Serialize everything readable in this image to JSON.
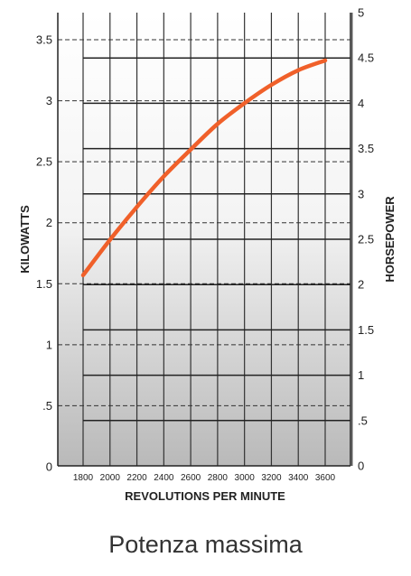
{
  "caption": "Potenza massima",
  "chart_data": {
    "type": "line",
    "title": "",
    "xlabel": "REVOLUTIONS PER MINUTE",
    "ylabel_left": "KILOWATTS",
    "ylabel_right": "HORSEPOWER",
    "x_ticks": [
      "1800",
      "2000",
      "2200",
      "2400",
      "2600",
      "2800",
      "3000",
      "3200",
      "3400",
      "3600"
    ],
    "x_range": [
      1800,
      3600
    ],
    "ylim_left": [
      0,
      3.7
    ],
    "ylim_right": [
      0,
      5
    ],
    "y_ticks_left": [
      {
        "value": 0,
        "label": "0"
      },
      {
        "value": 0.5,
        "label": ".5"
      },
      {
        "value": 1,
        "label": "1"
      },
      {
        "value": 1.5,
        "label": "1.5"
      },
      {
        "value": 2,
        "label": "2"
      },
      {
        "value": 2.5,
        "label": "2.5"
      },
      {
        "value": 3,
        "label": "3"
      },
      {
        "value": 3.5,
        "label": "3.5"
      }
    ],
    "y_ticks_right": [
      {
        "value": 0,
        "label": "0"
      },
      {
        "value": 0.5,
        "label": ".5"
      },
      {
        "value": 1,
        "label": "1"
      },
      {
        "value": 1.5,
        "label": "1.5"
      },
      {
        "value": 2,
        "label": "2"
      },
      {
        "value": 2.5,
        "label": "2.5"
      },
      {
        "value": 3,
        "label": "3"
      },
      {
        "value": 3.5,
        "label": "3.5"
      },
      {
        "value": 4,
        "label": "4"
      },
      {
        "value": 4.5,
        "label": "4.5"
      },
      {
        "value": 5,
        "label": "5"
      }
    ],
    "grid": true,
    "series": [
      {
        "name": "",
        "color": "#f0602a",
        "x": [
          1800,
          2000,
          2200,
          2400,
          2600,
          2800,
          3000,
          3200,
          3400,
          3600
        ],
        "y": [
          1.57,
          1.86,
          2.13,
          2.38,
          2.6,
          2.81,
          2.98,
          3.13,
          3.25,
          3.33
        ]
      }
    ]
  }
}
